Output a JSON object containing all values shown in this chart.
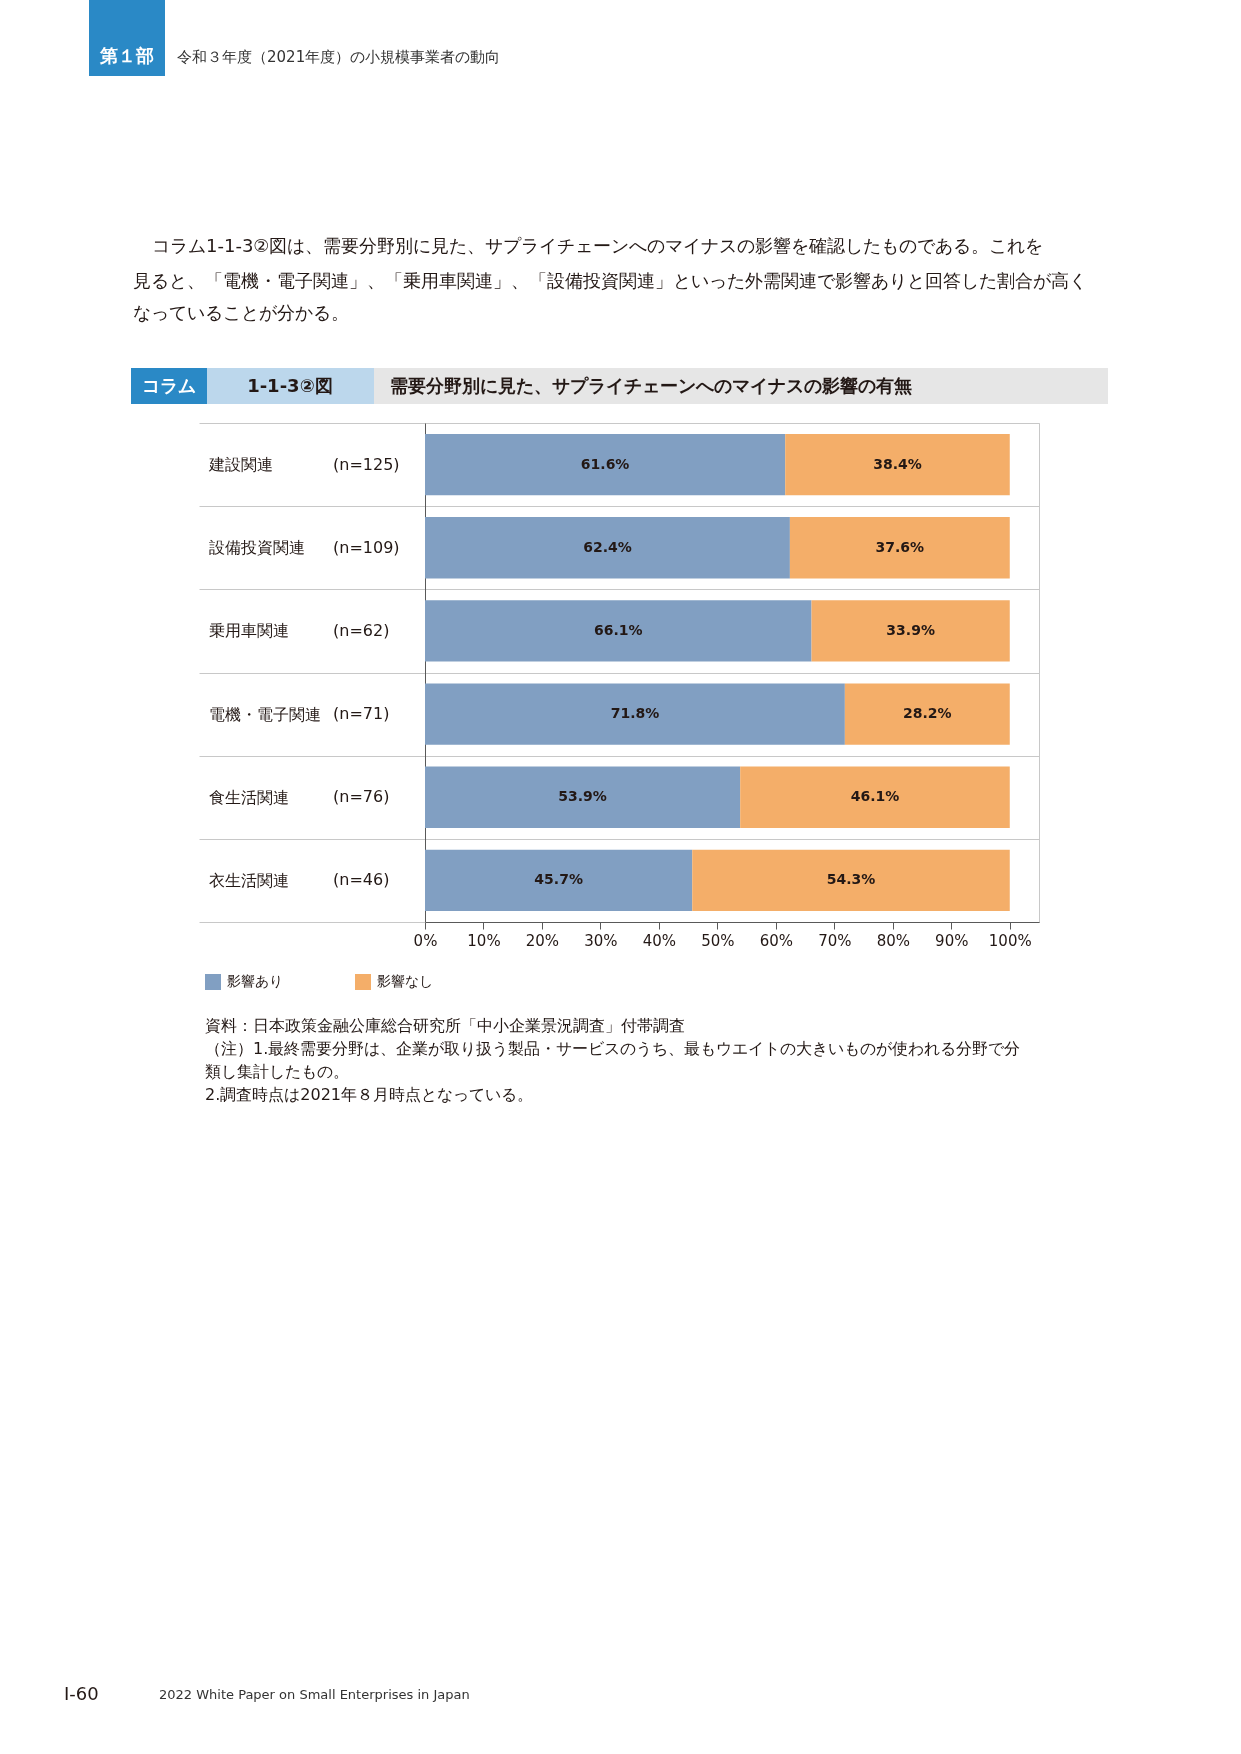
{
  "chart_data": {
    "type": "bar",
    "orientation": "horizontal",
    "stacked": true,
    "title": "需要分野別に見た、サプライチェーンへのマイナスの影響の有無",
    "categories": [
      "建設関連",
      "設備投資関連",
      "乗用車関連",
      "電機・電子関連",
      "食生活関連",
      "衣生活関連"
    ],
    "y2_categories": [
      "(n=125)",
      "(n=109)",
      "(n=62)",
      "(n=71)",
      "(n=76)",
      "(n=46)"
    ],
    "series": [
      {
        "name": "影響あり",
        "color": "#819fc2",
        "values": [
          61.6,
          62.4,
          66.1,
          71.8,
          53.9,
          45.7
        ],
        "value_labels": [
          "61.6%",
          "62.4%",
          "66.1%",
          "71.8%",
          "53.9%",
          "45.7%"
        ]
      },
      {
        "name": "影響なし",
        "color": "#f4ae69",
        "values": [
          38.4,
          37.6,
          33.9,
          28.2,
          46.1,
          54.3
        ],
        "value_labels": [
          "38.4%",
          "37.6%",
          "33.9%",
          "28.2%",
          "46.1%",
          "54.3%"
        ]
      }
    ],
    "xlim": [
      0,
      105
    ],
    "xticks": [
      {
        "value": 0,
        "label": "0%"
      },
      {
        "value": 10,
        "label": "10%"
      },
      {
        "value": 20,
        "label": "20%"
      },
      {
        "value": 30,
        "label": "30%"
      },
      {
        "value": 40,
        "label": "40%"
      },
      {
        "value": 50,
        "label": "50%"
      },
      {
        "value": 60,
        "label": "60%"
      },
      {
        "value": 70,
        "label": "70%"
      },
      {
        "value": 80,
        "label": "80%"
      },
      {
        "value": 90,
        "label": "90%"
      },
      {
        "value": 100,
        "label": "100%"
      }
    ],
    "grid": "y",
    "legend": "bottom left",
    "annotations": [
      "第１部",
      "令和３年度（2021年度）の小規模事業者の動向",
      "コラム1-1-3②図は、需要分野別に見た、サプライチェーンへのマイナスの影響を確認したものである。これを",
      "見ると、「電機・電子関連」、「乗用車関連」、「設備投資関連」といった外需関連で影響ありと回答した割合が高く",
      "なっていることが分かる。",
      "コラム",
      "1-1-3②図",
      "資料：日本政策金融公庫総合研究所「中小企業景況調査」付帯調査",
      "（注）1.最終需要分野は、企業が取り扱う製品・サービスのうち、最もウエイトの大きいものが使われる分野で分",
      "類し集計したもの。",
      "2.調査時点は2021年８月時点となっている。",
      "I-60",
      "2022 White Paper on Small Enterprises in Japan"
    ]
  }
}
